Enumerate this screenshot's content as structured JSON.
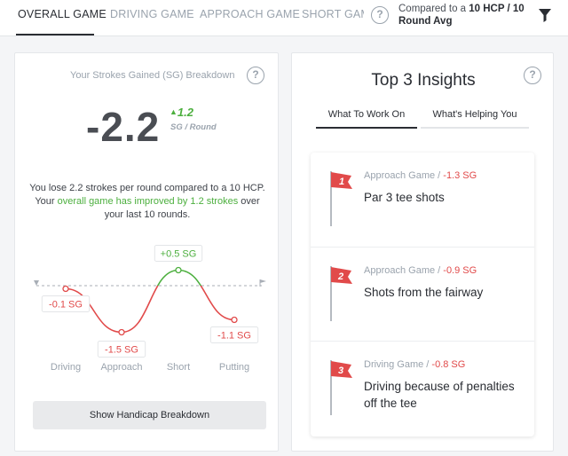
{
  "nav": {
    "tabs": [
      {
        "label": "OVERALL GAME",
        "active": true
      },
      {
        "label": "DRIVING GAME",
        "active": false
      },
      {
        "label": "APPROACH GAME",
        "active": false
      },
      {
        "label": "SHORT GAME",
        "active": false
      }
    ],
    "help_icon": "?",
    "compare_prefix": "Compared to a ",
    "compare_bold": "10 HCP / 10 Round Avg",
    "filter_icon": "filter-icon"
  },
  "breakdown": {
    "title": "Your Strokes Gained (SG) Breakdown",
    "help_icon": "?",
    "sg_value": "-2.2",
    "sg_delta": "1.2",
    "sg_unit": "SG / Round",
    "desc_part1": "You lose 2.2 strokes per round compared to a 10 HCP. Your ",
    "desc_highlight": "overall game has improved by 1.2 strokes",
    "desc_part2": " over your last 10 rounds.",
    "button_label": "Show Handicap Breakdown"
  },
  "chart_data": {
    "type": "line",
    "categories": [
      "Driving",
      "Approach",
      "Short",
      "Putting"
    ],
    "values": [
      -0.1,
      -1.5,
      0.5,
      -1.1
    ],
    "value_labels": [
      "-0.1 SG",
      "-1.5 SG",
      "+0.5 SG",
      "-1.1 SG"
    ],
    "baseline": 0,
    "colors": {
      "negative": "#e14a4a",
      "positive": "#4caf3e",
      "baseline": "#a8aeb6"
    }
  },
  "insights": {
    "title": "Top 3 Insights",
    "help_icon": "?",
    "tabs": [
      {
        "label": "What To Work On",
        "active": true
      },
      {
        "label": "What's Helping You",
        "active": false
      }
    ],
    "items": [
      {
        "rank": "1",
        "category": "Approach Game / ",
        "value": "-1.3 SG",
        "text": "Par 3 tee shots"
      },
      {
        "rank": "2",
        "category": "Approach Game / ",
        "value": "-0.9 SG",
        "text": "Shots from the fairway"
      },
      {
        "rank": "3",
        "category": "Driving Game / ",
        "value": "-0.8 SG",
        "text": "Driving because of penalties off the tee"
      }
    ],
    "flag_color": "#e14a4a"
  }
}
